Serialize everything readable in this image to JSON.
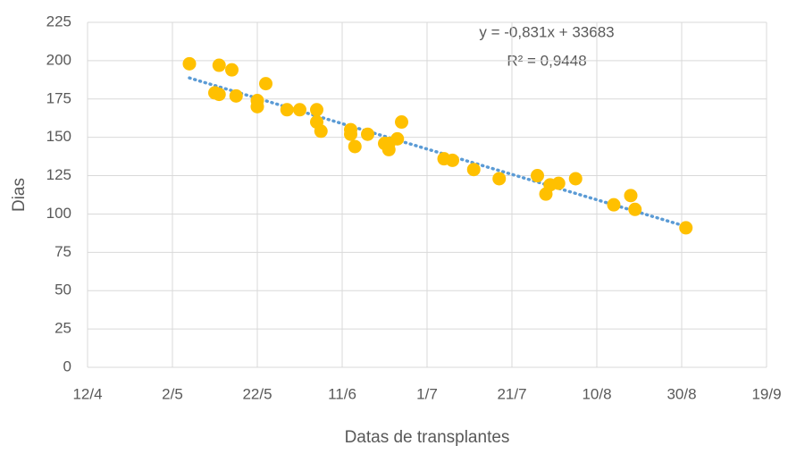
{
  "chart_data": {
    "type": "scatter",
    "x_label": "Datas de transplantes",
    "y_label": "Dias",
    "annotations": [
      "y = -0,831x + 33683",
      "R² = 0,9448"
    ],
    "x": [
      "6/5",
      "12/5",
      "13/5",
      "13/5",
      "16/5",
      "17/5",
      "22/5",
      "22/5",
      "24/5",
      "29/5",
      "1/6",
      "5/6",
      "5/6",
      "6/6",
      "13/6",
      "13/6",
      "14/6",
      "17/6",
      "21/6",
      "22/6",
      "22/6",
      "24/6",
      "25/6",
      "5/7",
      "7/7",
      "12/7",
      "18/7",
      "27/7",
      "29/7",
      "30/7",
      "1/8",
      "5/8",
      "14/8",
      "18/8",
      "19/8",
      "31/8"
    ],
    "values": [
      198,
      179,
      178,
      197,
      194,
      177,
      170,
      174,
      185,
      168,
      168,
      168,
      160,
      154,
      155,
      152,
      144,
      152,
      146,
      142,
      146,
      149,
      160,
      136,
      135,
      129,
      123,
      125,
      113,
      119,
      120,
      123,
      106,
      112,
      103,
      91
    ],
    "color": "#FFC000",
    "trendline_color": "#5B9BD5",
    "xlim": [
      "12/4",
      "19/9"
    ],
    "xticks": [
      "12/4",
      "2/5",
      "22/5",
      "11/6",
      "1/7",
      "21/7",
      "10/8",
      "30/8",
      "19/9"
    ],
    "ylim": [
      0,
      225
    ],
    "yticks": [
      0,
      25,
      50,
      75,
      100,
      125,
      150,
      175,
      200,
      225
    ],
    "grid": true
  }
}
